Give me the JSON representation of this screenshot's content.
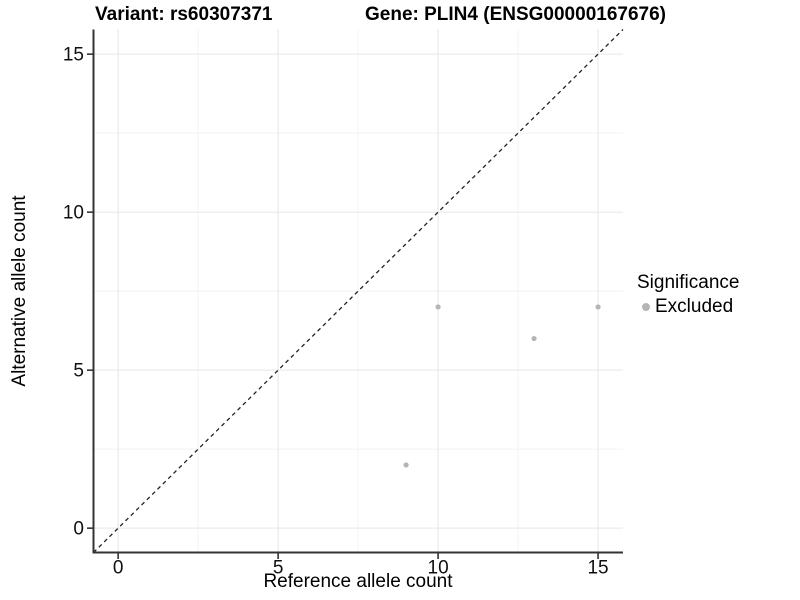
{
  "chart_data": {
    "type": "scatter",
    "title_left": "Variant: rs60307371",
    "title_right": "Gene: PLIN4 (ENSG00000167676)",
    "xlabel": "Reference allele count",
    "ylabel": "Alternative allele count",
    "xlim": [
      -0.77,
      15.78
    ],
    "ylim": [
      -0.77,
      15.78
    ],
    "xticks": [
      0,
      5,
      10,
      15
    ],
    "yticks": [
      0,
      5,
      10,
      15
    ],
    "x_minor_gridlines": [
      2.5,
      7.5,
      12.5
    ],
    "y_minor_gridlines": [
      2.5,
      7.5,
      12.5
    ],
    "grid": "major+minor",
    "legend_position": "right",
    "legend": {
      "title": "Significance",
      "entries": [
        {
          "label": "Excluded",
          "color": "#b5b5b5"
        }
      ]
    },
    "series": [
      {
        "name": "Excluded",
        "color": "#b5b5b5",
        "points": [
          [
            9,
            2
          ],
          [
            10,
            7
          ],
          [
            13,
            6
          ],
          [
            15,
            7
          ]
        ]
      }
    ],
    "reference_line": {
      "type": "identity y=x",
      "style": "dashed",
      "color": "#222222"
    },
    "style": {
      "grid_major_color": "#e6e6e6",
      "grid_minor_color": "#f2f2f2",
      "axis_color": "#333333",
      "text_color": "#111111",
      "point_color": "#b5b5b5",
      "background": "#ffffff"
    }
  }
}
